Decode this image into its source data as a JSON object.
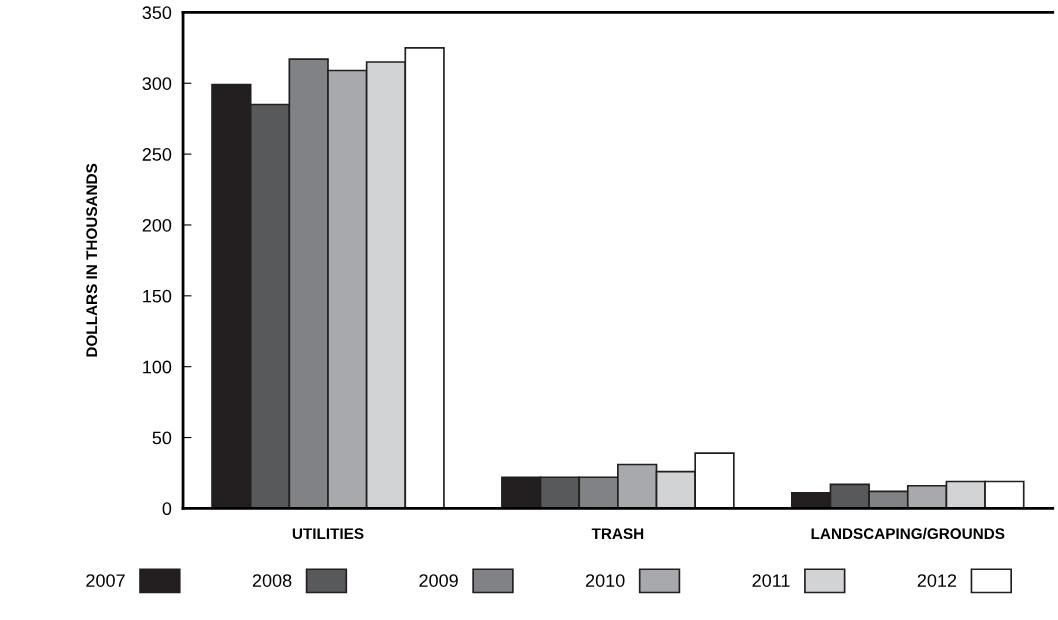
{
  "chart_data": {
    "type": "bar",
    "ylabel": "DOLLARS IN THOUSANDS",
    "categories": [
      "UTILITIES",
      "TRASH",
      "LANDSCAPING/GROUNDS"
    ],
    "series": [
      {
        "name": "2007",
        "color": "#231f20",
        "values": [
          299,
          22,
          11
        ]
      },
      {
        "name": "2008",
        "color": "#58595b",
        "values": [
          285,
          22,
          17
        ]
      },
      {
        "name": "2009",
        "color": "#808285",
        "values": [
          317,
          22,
          12
        ]
      },
      {
        "name": "2010",
        "color": "#a7a9ac",
        "values": [
          309,
          31,
          16
        ]
      },
      {
        "name": "2011",
        "color": "#d1d3d4",
        "values": [
          315,
          26,
          19
        ]
      },
      {
        "name": "2012",
        "color": "#ffffff",
        "values": [
          325,
          39,
          19
        ]
      }
    ],
    "ylim": [
      0,
      350
    ],
    "yticks": [
      0,
      50,
      100,
      150,
      200,
      250,
      300,
      350
    ],
    "grid": false,
    "legend": "bottom"
  }
}
